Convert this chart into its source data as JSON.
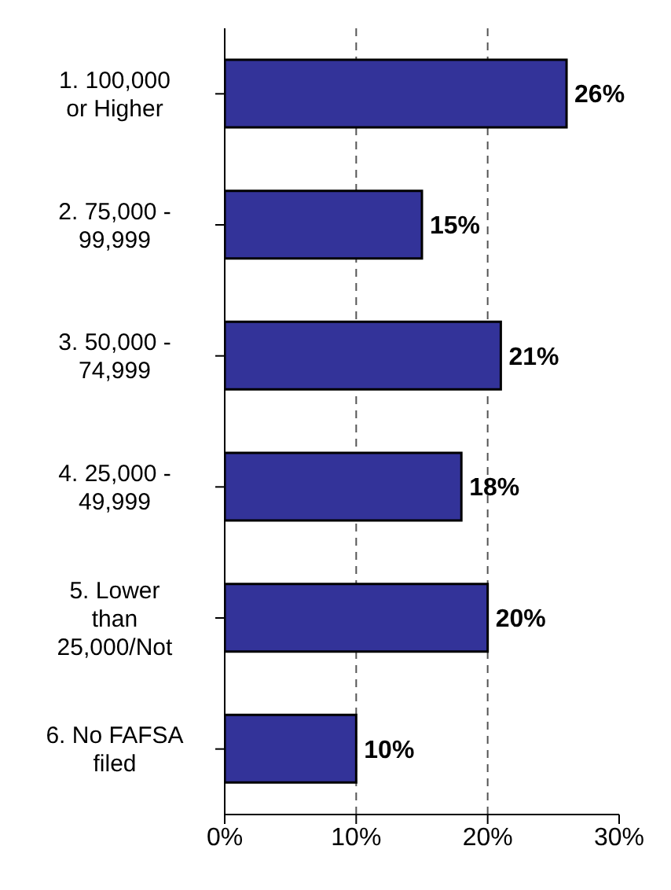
{
  "chart_data": {
    "type": "bar",
    "orientation": "horizontal",
    "categories": [
      "1. 100,000 or Higher",
      "2. 75,000 - 99,999",
      "3. 50,000 - 74,999",
      "4. 25,000 - 49,999",
      "5. Lower than 25,000/Not",
      "6. No FAFSA filed"
    ],
    "values": [
      26,
      15,
      21,
      18,
      20,
      10
    ],
    "value_labels": [
      "26%",
      "15%",
      "21%",
      "18%",
      "20%",
      "10%"
    ],
    "color": "#333399",
    "xlim": [
      0,
      30
    ],
    "xticks": [
      {
        "value": 0,
        "label": "0%"
      },
      {
        "value": 10,
        "label": "10%"
      },
      {
        "value": 20,
        "label": "20%"
      },
      {
        "value": 30,
        "label": "30%"
      }
    ],
    "grid": "x"
  }
}
